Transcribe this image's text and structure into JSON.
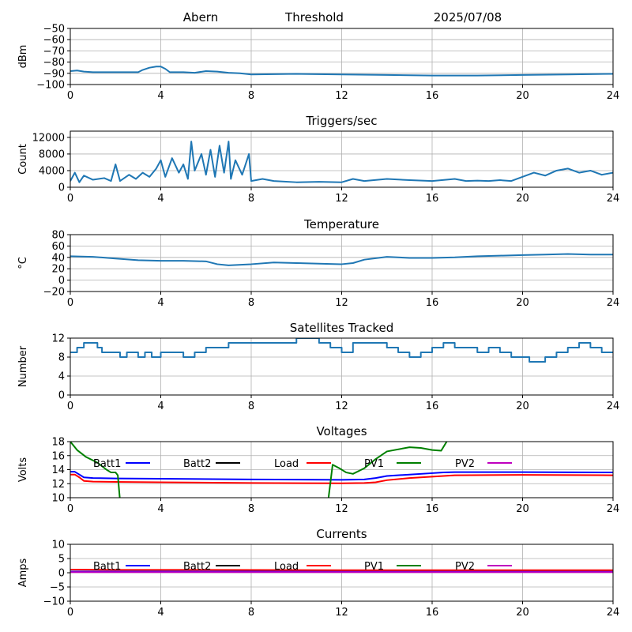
{
  "header": {
    "site": "Abern",
    "mode": "Threshold",
    "date": "2025/07/08"
  },
  "chart_data": [
    {
      "type": "line",
      "title": "",
      "ylabel": "dBm",
      "ylim": [
        -100,
        -50
      ],
      "yticks": [
        -100,
        -90,
        -80,
        -70,
        -60,
        -50
      ],
      "yticklabels": [
        "−100",
        "−90",
        "−80",
        "−70",
        "−60",
        "−50"
      ],
      "xlim": [
        0,
        24
      ],
      "xticks": [
        0,
        4,
        8,
        12,
        16,
        20,
        24
      ],
      "xticklabels": [
        "0",
        "4",
        "8",
        "12",
        "16",
        "20",
        "24"
      ],
      "grid": true,
      "series": [
        {
          "color": "#1f77b4",
          "x": [
            0,
            0.3,
            0.6,
            1,
            2,
            3,
            3.2,
            3.5,
            3.8,
            4,
            4.2,
            4.4,
            5,
            5.5,
            6,
            6.5,
            7,
            7.5,
            8,
            10,
            12,
            14,
            16,
            18,
            20,
            22,
            24
          ],
          "y": [
            -88,
            -87.5,
            -88.5,
            -89,
            -89,
            -89,
            -87,
            -85,
            -84,
            -84,
            -86,
            -89,
            -89,
            -89.5,
            -88,
            -88.5,
            -89.5,
            -90,
            -91,
            -90.5,
            -91,
            -91.5,
            -92,
            -92,
            -91.5,
            -91,
            -90.5
          ]
        }
      ]
    },
    {
      "type": "line",
      "title": "Triggers/sec",
      "ylabel": "Count",
      "ylim": [
        0,
        13500
      ],
      "yticks": [
        0,
        4000,
        8000,
        12000
      ],
      "yticklabels": [
        "0",
        "4000",
        "8000",
        "12000"
      ],
      "xlim": [
        0,
        24
      ],
      "xticks": [
        0,
        4,
        8,
        12,
        16,
        20,
        24
      ],
      "xticklabels": [
        "0",
        "4",
        "8",
        "12",
        "16",
        "20",
        "24"
      ],
      "grid": true,
      "series": [
        {
          "color": "#1f77b4",
          "x": [
            0,
            0.2,
            0.4,
            0.6,
            1,
            1.5,
            1.8,
            2,
            2.2,
            2.6,
            2.9,
            3.2,
            3.5,
            3.8,
            4,
            4.2,
            4.5,
            4.8,
            5,
            5.2,
            5.35,
            5.5,
            5.8,
            6,
            6.2,
            6.4,
            6.6,
            6.8,
            7,
            7.1,
            7.3,
            7.6,
            7.9,
            8,
            8.5,
            9,
            10,
            11,
            12,
            12.5,
            13,
            14,
            15,
            16,
            17,
            17.5,
            18,
            18.5,
            19,
            19.5,
            20,
            20.5,
            21,
            21.5,
            22,
            22.5,
            23,
            23.5,
            24
          ],
          "y": [
            1500,
            3500,
            1200,
            2800,
            1800,
            2200,
            1500,
            5500,
            1500,
            3000,
            2000,
            3500,
            2500,
            4500,
            6500,
            2500,
            7000,
            3500,
            5500,
            2000,
            11000,
            4000,
            8000,
            3000,
            9000,
            2500,
            10000,
            3500,
            11000,
            2000,
            6500,
            3000,
            8000,
            1500,
            2000,
            1500,
            1200,
            1300,
            1200,
            2000,
            1500,
            2000,
            1700,
            1500,
            2000,
            1500,
            1600,
            1500,
            1700,
            1500,
            2500,
            3500,
            2800,
            4000,
            4500,
            3500,
            4000,
            3000,
            3500
          ]
        }
      ]
    },
    {
      "type": "line",
      "title": "Temperature",
      "ylabel": "°C",
      "ylim": [
        -20,
        80
      ],
      "yticks": [
        -20,
        0,
        20,
        40,
        60,
        80
      ],
      "yticklabels": [
        "−20",
        "0",
        "20",
        "40",
        "60",
        "80"
      ],
      "xlim": [
        0,
        24
      ],
      "xticks": [
        0,
        4,
        8,
        12,
        16,
        20,
        24
      ],
      "xticklabels": [
        "0",
        "4",
        "8",
        "12",
        "16",
        "20",
        "24"
      ],
      "grid": true,
      "series": [
        {
          "color": "#1f77b4",
          "x": [
            0,
            1,
            2,
            3,
            4,
            5,
            6,
            6.5,
            7,
            8,
            9,
            10,
            11,
            12,
            12.5,
            13,
            14,
            15,
            16,
            17,
            18,
            19,
            20,
            21,
            22,
            23,
            24
          ],
          "y": [
            42,
            41,
            38,
            35,
            34,
            34,
            33,
            28,
            26,
            28,
            31,
            30,
            29,
            28,
            30,
            36,
            41,
            39,
            39,
            40,
            42,
            43,
            44,
            45,
            46,
            45,
            45
          ]
        }
      ]
    },
    {
      "type": "line",
      "title": "Satellites Tracked",
      "ylabel": "Number",
      "ylim": [
        0,
        12
      ],
      "yticks": [
        0,
        4,
        8,
        12
      ],
      "yticklabels": [
        "0",
        "4",
        "8",
        "12"
      ],
      "xlim": [
        0,
        24
      ],
      "xticks": [
        0,
        4,
        8,
        12,
        16,
        20,
        24
      ],
      "xticklabels": [
        "0",
        "4",
        "8",
        "12",
        "16",
        "20",
        "24"
      ],
      "grid": true,
      "series": [
        {
          "color": "#1f77b4",
          "step": true,
          "x": [
            0,
            0.3,
            0.6,
            1.2,
            1.4,
            2.2,
            2.5,
            3,
            3.3,
            3.6,
            4,
            5,
            5.5,
            6,
            7,
            8,
            9.5,
            10,
            11,
            11.5,
            12,
            12.5,
            13.5,
            14,
            14.5,
            15,
            15.5,
            16,
            16.5,
            17,
            18,
            18.5,
            19,
            19.5,
            20,
            20.3,
            21,
            21.5,
            22,
            22.5,
            23,
            23.5,
            24
          ],
          "y": [
            9,
            10,
            11,
            10,
            9,
            8,
            9,
            8,
            9,
            8,
            9,
            8,
            9,
            10,
            11,
            11,
            11,
            12,
            11,
            10,
            9,
            11,
            11,
            10,
            9,
            8,
            9,
            10,
            11,
            10,
            9,
            10,
            9,
            8,
            8,
            7,
            8,
            9,
            10,
            11,
            10,
            9,
            9
          ]
        }
      ]
    },
    {
      "type": "line",
      "title": "Voltages",
      "ylabel": "Volts",
      "ylim": [
        10,
        18
      ],
      "yticks": [
        10,
        12,
        14,
        16,
        18
      ],
      "yticklabels": [
        "10",
        "12",
        "14",
        "16",
        "18"
      ],
      "xlim": [
        0,
        24
      ],
      "xticks": [
        0,
        4,
        8,
        12,
        16,
        20,
        24
      ],
      "xticklabels": [
        "0",
        "4",
        "8",
        "12",
        "16",
        "20",
        "24"
      ],
      "grid": true,
      "legend": "top (inline row)",
      "series": [
        {
          "name": "Batt1",
          "color": "#0000ff",
          "x": [
            0,
            0.2,
            0.4,
            0.6,
            1,
            2,
            4,
            8,
            12,
            13,
            13.5,
            14,
            15,
            16,
            16.5,
            17,
            20,
            24
          ],
          "y": [
            13.7,
            13.7,
            13.3,
            12.9,
            12.8,
            12.75,
            12.7,
            12.6,
            12.55,
            12.6,
            12.8,
            13.1,
            13.3,
            13.5,
            13.6,
            13.65,
            13.65,
            13.6
          ]
        },
        {
          "name": "Batt2",
          "color": "#000000",
          "x": [],
          "y": []
        },
        {
          "name": "Load",
          "color": "#ff0000",
          "x": [
            0,
            0.2,
            0.4,
            0.6,
            1,
            2,
            4,
            8,
            12,
            13,
            13.5,
            14,
            15,
            16,
            16.5,
            17,
            20,
            24
          ],
          "y": [
            13.3,
            13.3,
            12.9,
            12.4,
            12.3,
            12.25,
            12.2,
            12.1,
            12.05,
            12.1,
            12.2,
            12.5,
            12.8,
            13.0,
            13.1,
            13.2,
            13.25,
            13.2
          ]
        },
        {
          "name": "PV1",
          "color": "#008000",
          "x": [
            0,
            0.3,
            0.7,
            1.2,
            1.6,
            1.8,
            2.0,
            2.1,
            2.2,
            11.4,
            11.6,
            11.9,
            12.2,
            12.5,
            13,
            13.5,
            14,
            15,
            15.5,
            16,
            16.4,
            16.7
          ],
          "y": [
            18,
            16.8,
            15.8,
            15.0,
            14.0,
            13.6,
            13.6,
            13.2,
            9.5,
            9.5,
            14.7,
            14.2,
            13.6,
            13.4,
            14.2,
            15.5,
            16.6,
            17.2,
            17.1,
            16.8,
            16.7,
            18.3
          ]
        },
        {
          "name": "PV2",
          "color": "#bf00bf",
          "x": [],
          "y": []
        }
      ]
    },
    {
      "type": "line",
      "title": "Currents",
      "ylabel": "Amps",
      "ylim": [
        -10,
        10
      ],
      "yticks": [
        -10,
        -5,
        0,
        5,
        10
      ],
      "yticklabels": [
        "−10",
        "−5",
        "0",
        "5",
        "10"
      ],
      "xlim": [
        0,
        24
      ],
      "xticks": [
        0,
        4,
        8,
        12,
        16,
        20,
        24
      ],
      "xticklabels": [
        "0",
        "4",
        "8",
        "12",
        "16",
        "20",
        "24"
      ],
      "grid": true,
      "legend": "top (inline row)",
      "series": [
        {
          "name": "Batt1",
          "color": "#0000ff",
          "x": [
            0,
            24
          ],
          "y": [
            0.4,
            0.4
          ]
        },
        {
          "name": "Batt2",
          "color": "#000000",
          "x": [],
          "y": []
        },
        {
          "name": "Load",
          "color": "#ff0000",
          "x": [
            0,
            2,
            6,
            12,
            18,
            24
          ],
          "y": [
            1.1,
            1.0,
            1.0,
            0.9,
            0.9,
            0.9
          ]
        },
        {
          "name": "PV1",
          "color": "#008000",
          "x": [],
          "y": []
        },
        {
          "name": "PV2",
          "color": "#bf00bf",
          "x": [
            0,
            24
          ],
          "y": [
            0.2,
            0.2
          ]
        }
      ]
    }
  ]
}
